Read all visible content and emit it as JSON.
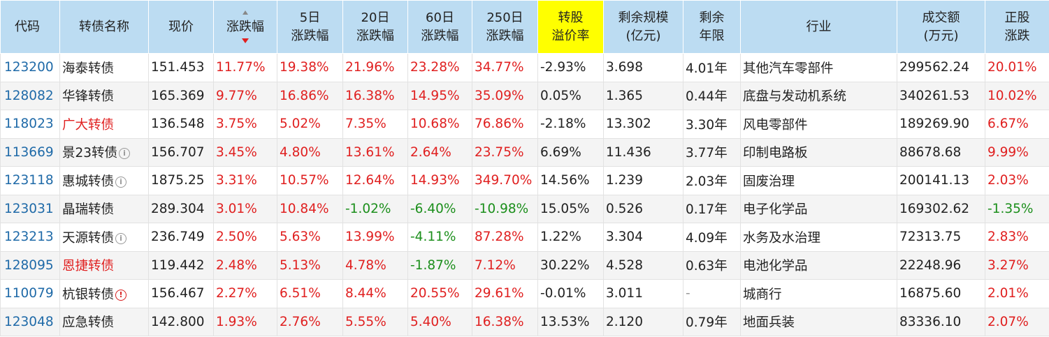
{
  "header": {
    "code": "代码",
    "name": "转债名称",
    "price": "现价",
    "change": "涨跌幅",
    "d5": [
      "5日",
      "涨跌幅"
    ],
    "d20": [
      "20日",
      "涨跌幅"
    ],
    "d60": [
      "60日",
      "涨跌幅"
    ],
    "d250": [
      "250日",
      "涨跌幅"
    ],
    "premium": [
      "转股",
      "溢价率"
    ],
    "scale": [
      "剩余规模",
      "(亿元)"
    ],
    "years": [
      "剩余",
      "年限"
    ],
    "industry": "行业",
    "volume": [
      "成交额",
      "(万元)"
    ],
    "stock": [
      "正股",
      "涨跌"
    ]
  },
  "colors": {
    "header_bg": "#bcdcf2",
    "highlight": "#ffff00",
    "up": "#e02020",
    "down": "#1c8f1c",
    "code": "#1f6aa8"
  },
  "rows": [
    {
      "code": "123200",
      "name": "海泰转债",
      "name_red": false,
      "icon": "",
      "price": "151.453",
      "change": "11.77%",
      "d5": "19.38%",
      "d20": "21.96%",
      "d60": "23.28%",
      "d250": "34.77%",
      "premium": "-2.93%",
      "scale": "3.698",
      "years": "4.01年",
      "industry": "其他汽车零部件",
      "volume": "299562.24",
      "stock": "20.01%"
    },
    {
      "code": "128082",
      "name": "华锋转债",
      "name_red": false,
      "icon": "",
      "price": "165.369",
      "change": "9.77%",
      "d5": "16.86%",
      "d20": "16.38%",
      "d60": "14.95%",
      "d250": "35.09%",
      "premium": "0.05%",
      "scale": "1.365",
      "years": "0.44年",
      "industry": "底盘与发动机系统",
      "volume": "340261.53",
      "stock": "10.02%"
    },
    {
      "code": "118023",
      "name": "广大转债",
      "name_red": true,
      "icon": "",
      "price": "136.548",
      "change": "3.75%",
      "d5": "5.02%",
      "d20": "7.35%",
      "d60": "10.68%",
      "d250": "76.86%",
      "premium": "-2.18%",
      "scale": "13.302",
      "years": "3.30年",
      "industry": "风电零部件",
      "volume": "189269.90",
      "stock": "6.67%"
    },
    {
      "code": "113669",
      "name": "景23转债",
      "name_red": false,
      "icon": "info",
      "price": "156.707",
      "change": "3.45%",
      "d5": "4.80%",
      "d20": "13.61%",
      "d60": "2.64%",
      "d250": "23.75%",
      "premium": "6.69%",
      "scale": "11.436",
      "years": "3.77年",
      "industry": "印制电路板",
      "volume": "88678.68",
      "stock": "9.99%"
    },
    {
      "code": "123118",
      "name": "惠城转债",
      "name_red": false,
      "icon": "info",
      "price": "1875.25",
      "change": "3.31%",
      "d5": "10.57%",
      "d20": "12.64%",
      "d60": "14.93%",
      "d250": "349.70%",
      "premium": "14.56%",
      "scale": "1.239",
      "years": "2.03年",
      "industry": "固废治理",
      "volume": "200141.13",
      "stock": "2.03%"
    },
    {
      "code": "123031",
      "name": "晶瑞转债",
      "name_red": false,
      "icon": "",
      "price": "289.304",
      "change": "3.01%",
      "d5": "10.84%",
      "d20": "-1.02%",
      "d60": "-6.40%",
      "d250": "-10.98%",
      "premium": "15.05%",
      "scale": "0.526",
      "years": "0.17年",
      "industry": "电子化学品",
      "volume": "169302.62",
      "stock": "-1.35%"
    },
    {
      "code": "123213",
      "name": "天源转债",
      "name_red": false,
      "icon": "info",
      "price": "236.749",
      "change": "2.50%",
      "d5": "5.63%",
      "d20": "13.99%",
      "d60": "-4.11%",
      "d250": "87.28%",
      "premium": "1.22%",
      "scale": "3.304",
      "years": "4.09年",
      "industry": "水务及水治理",
      "volume": "72313.75",
      "stock": "2.83%"
    },
    {
      "code": "128095",
      "name": "恩捷转债",
      "name_red": true,
      "icon": "",
      "price": "119.442",
      "change": "2.48%",
      "d5": "5.13%",
      "d20": "4.78%",
      "d60": "-1.87%",
      "d250": "7.12%",
      "premium": "30.22%",
      "scale": "4.528",
      "years": "0.63年",
      "industry": "电池化学品",
      "volume": "22248.96",
      "stock": "3.27%"
    },
    {
      "code": "110079",
      "name": "杭银转债",
      "name_red": false,
      "icon": "alert",
      "price": "156.467",
      "change": "2.27%",
      "d5": "6.51%",
      "d20": "8.44%",
      "d60": "20.55%",
      "d250": "29.61%",
      "premium": "-0.01%",
      "scale": "3.011",
      "years": "-",
      "industry": "城商行",
      "volume": "16875.60",
      "stock": "2.01%"
    },
    {
      "code": "123048",
      "name": "应急转债",
      "name_red": false,
      "icon": "",
      "price": "142.800",
      "change": "1.93%",
      "d5": "2.76%",
      "d20": "5.55%",
      "d60": "5.40%",
      "d250": "16.38%",
      "premium": "13.53%",
      "scale": "2.120",
      "years": "0.79年",
      "industry": "地面兵装",
      "volume": "83336.10",
      "stock": "2.07%"
    }
  ]
}
